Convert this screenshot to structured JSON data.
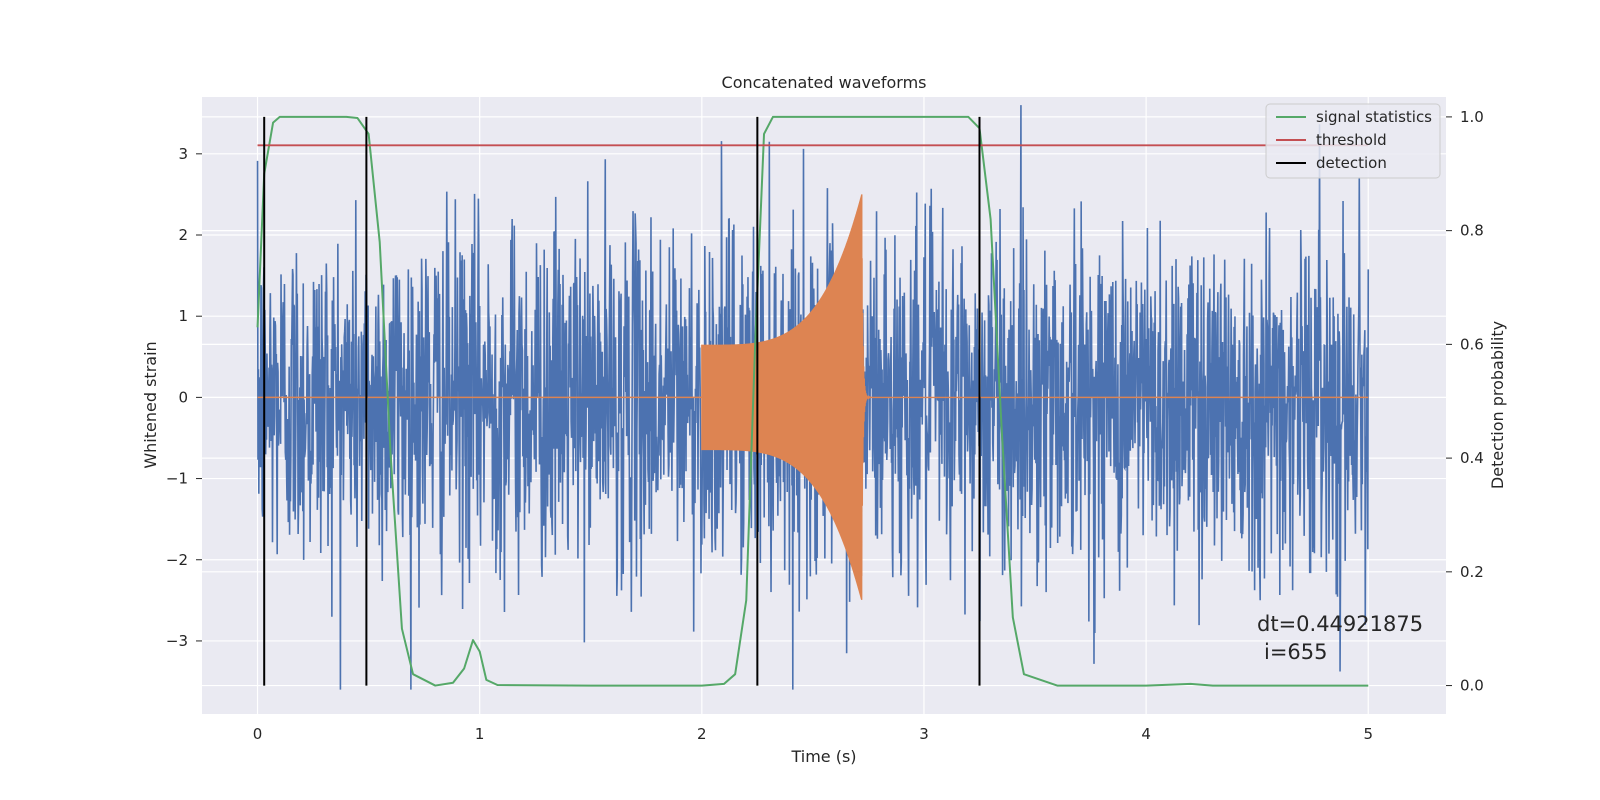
{
  "chart_data": {
    "type": "line",
    "title": "Concatenated waveforms",
    "xlabel": "Time (s)",
    "ylabel": "Whitened strain",
    "ylabel_right": "Detection probability",
    "xlim": [
      -0.25,
      5.35
    ],
    "ylim": [
      -3.9,
      3.7
    ],
    "ylim_right": [
      -0.05,
      1.035
    ],
    "x_ticks": [
      "0",
      "1",
      "2",
      "3",
      "4",
      "5"
    ],
    "y_ticks": [
      "3",
      "2",
      "1",
      "0",
      "−1",
      "−2",
      "−3"
    ],
    "y_ticks_right": [
      "1.0",
      "0.8",
      "0.6",
      "0.4",
      "0.2",
      "0.0"
    ],
    "grid": true,
    "legend_position": "top-right",
    "series": [
      {
        "name": "",
        "role": "whitened-strain-noise",
        "axis": "left",
        "color": "#4c72b0",
        "description_range": [
          -3.6,
          3.6
        ],
        "x_range": [
          0,
          5
        ]
      },
      {
        "name": "",
        "role": "injected-chirp-signal",
        "axis": "left",
        "color": "#dd8452",
        "x_range": [
          0,
          5
        ],
        "chirp_x": [
          2.0,
          2.72
        ],
        "chirp_peak": [
          0.65,
          2.5
        ]
      },
      {
        "name": "signal statistics",
        "axis": "right",
        "color": "#55a868",
        "x": [
          0,
          0.03,
          0.07,
          0.1,
          0.2,
          0.4,
          0.45,
          0.5,
          0.55,
          0.6,
          0.65,
          0.7,
          0.8,
          0.88,
          0.93,
          0.97,
          1.0,
          1.03,
          1.08,
          1.5,
          2.0,
          2.1,
          2.15,
          2.2,
          2.24,
          2.28,
          2.32,
          2.6,
          3.2,
          3.25,
          3.3,
          3.35,
          3.4,
          3.45,
          3.6,
          4.0,
          4.2,
          4.3,
          5.0
        ],
        "y": [
          0.63,
          0.9,
          0.99,
          1.0,
          1.0,
          1.0,
          0.998,
          0.97,
          0.78,
          0.4,
          0.1,
          0.02,
          0.0,
          0.005,
          0.03,
          0.08,
          0.06,
          0.01,
          0.001,
          0.0,
          0.0,
          0.003,
          0.02,
          0.15,
          0.6,
          0.97,
          1.0,
          1.0,
          1.0,
          0.98,
          0.82,
          0.45,
          0.12,
          0.02,
          0.0,
          0.0,
          0.003,
          0.0,
          0.0
        ]
      },
      {
        "name": "threshold",
        "axis": "right",
        "color": "#c44e52",
        "x": [
          0,
          5
        ],
        "y": [
          0.95,
          0.95
        ]
      },
      {
        "name": "detection",
        "axis": "right",
        "color": "#000000",
        "type": "vlines",
        "x": [
          0.03,
          0.49,
          2.25,
          3.25
        ]
      }
    ],
    "annotations": {
      "dt": "dt=0.44921875",
      "i": "i=655"
    }
  }
}
